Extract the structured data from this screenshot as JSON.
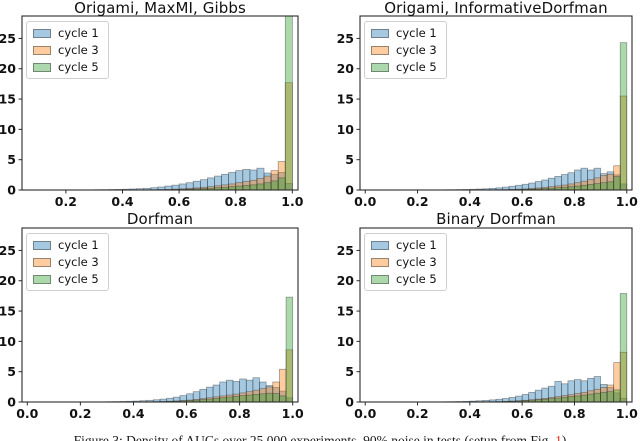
{
  "figure": {
    "caption": {
      "prefix": "Figure 3: Density of AUCs over 25,000 experiments, 90% noise in tests (setup from Fig. ",
      "link": "1",
      "suffix": ")",
      "link_color": "#e8291c"
    }
  },
  "legend": {
    "items": [
      "cycle 1",
      "cycle 3",
      "cycle 5"
    ]
  },
  "colors": {
    "cycle1": "#1f77b4",
    "cycle3": "#ff7f0e",
    "cycle5": "#2ca02c",
    "fill_alpha": 0.4,
    "edge": "#2d2d2d",
    "spine": "#2b2b2b"
  },
  "chart_data": [
    {
      "type": "bar",
      "subtype": "overlaid-histogram",
      "title": "Origami, MaxMI, Gibbs",
      "xlabel": "",
      "ylabel": "",
      "xlim": [
        0.045,
        1.02
      ],
      "ylim": [
        0,
        28.7
      ],
      "xticks": [
        0.2,
        0.4,
        0.6,
        0.8,
        1.0
      ],
      "yticks": [
        0,
        5,
        10,
        15,
        20,
        25
      ],
      "grid": false,
      "legend_position": "upper left",
      "bin_start": 0.3,
      "bin_width": 0.025,
      "series": [
        {
          "name": "cycle 1",
          "color": "#1f77b4",
          "values": [
            0.05,
            0.06,
            0.08,
            0.1,
            0.13,
            0.17,
            0.22,
            0.28,
            0.38,
            0.5,
            0.65,
            0.8,
            1.0,
            1.2,
            1.45,
            1.7,
            2.0,
            2.3,
            2.6,
            2.9,
            3.2,
            3.4,
            3.3,
            3.6,
            2.8,
            2.6,
            2.9,
            1.1
          ]
        },
        {
          "name": "cycle 3",
          "color": "#ff7f0e",
          "values": [
            0,
            0,
            0,
            0,
            0,
            0,
            0.02,
            0.03,
            0.05,
            0.08,
            0.1,
            0.15,
            0.2,
            0.28,
            0.35,
            0.45,
            0.55,
            0.7,
            0.85,
            1.0,
            1.2,
            1.4,
            1.6,
            1.9,
            2.3,
            3.2,
            4.7,
            17.7
          ]
        },
        {
          "name": "cycle 5",
          "color": "#2ca02c",
          "values": [
            0,
            0,
            0,
            0,
            0,
            0,
            0,
            0,
            0.02,
            0.03,
            0.05,
            0.08,
            0.1,
            0.15,
            0.2,
            0.25,
            0.3,
            0.4,
            0.45,
            0.55,
            0.65,
            0.75,
            0.85,
            1.0,
            1.2,
            1.5,
            2.0,
            28.7
          ]
        }
      ]
    },
    {
      "type": "bar",
      "subtype": "overlaid-histogram",
      "title": "Origami, InformativeDorfman",
      "xlabel": "",
      "ylabel": "",
      "xlim": [
        -0.02,
        1.02
      ],
      "ylim": [
        0,
        28.7
      ],
      "xticks": [
        0.0,
        0.2,
        0.4,
        0.6,
        0.8,
        1.0
      ],
      "yticks": [
        0,
        5,
        10,
        15,
        20,
        25
      ],
      "grid": false,
      "legend_position": "upper left",
      "bin_start": 0.3,
      "bin_width": 0.025,
      "series": [
        {
          "name": "cycle 1",
          "color": "#1f77b4",
          "values": [
            0.04,
            0.05,
            0.07,
            0.09,
            0.12,
            0.16,
            0.2,
            0.27,
            0.36,
            0.48,
            0.62,
            0.78,
            0.95,
            1.15,
            1.4,
            1.65,
            1.95,
            2.25,
            2.55,
            2.85,
            3.3,
            3.6,
            3.3,
            3.6,
            2.7,
            3.0,
            2.5,
            1.0
          ]
        },
        {
          "name": "cycle 3",
          "color": "#ff7f0e",
          "values": [
            0,
            0,
            0,
            0,
            0,
            0,
            0.02,
            0.03,
            0.05,
            0.07,
            0.1,
            0.14,
            0.19,
            0.26,
            0.34,
            0.44,
            0.55,
            0.68,
            0.82,
            1.0,
            1.2,
            1.45,
            1.7,
            2.0,
            2.4,
            2.6,
            4.0,
            15.5
          ]
        },
        {
          "name": "cycle 5",
          "color": "#2ca02c",
          "values": [
            0,
            0,
            0,
            0,
            0,
            0,
            0,
            0,
            0.02,
            0.03,
            0.05,
            0.07,
            0.1,
            0.14,
            0.18,
            0.24,
            0.3,
            0.38,
            0.46,
            0.55,
            0.65,
            0.78,
            0.92,
            1.05,
            1.2,
            1.35,
            2.2,
            24.3
          ]
        }
      ]
    },
    {
      "type": "bar",
      "subtype": "overlaid-histogram",
      "title": "Dorfman",
      "xlabel": "",
      "ylabel": "",
      "xlim": [
        -0.02,
        1.02
      ],
      "ylim": [
        0,
        28.7
      ],
      "xticks": [
        0.0,
        0.2,
        0.4,
        0.6,
        0.8,
        1.0
      ],
      "yticks": [
        0,
        5,
        10,
        15,
        20,
        25
      ],
      "grid": false,
      "legend_position": "upper left",
      "bin_start": 0.3,
      "bin_width": 0.025,
      "series": [
        {
          "name": "cycle 1",
          "color": "#1f77b4",
          "values": [
            0.05,
            0.07,
            0.09,
            0.12,
            0.16,
            0.21,
            0.28,
            0.37,
            0.48,
            0.62,
            0.8,
            1.05,
            1.35,
            1.7,
            2.1,
            2.45,
            2.8,
            3.3,
            3.6,
            3.4,
            3.8,
            3.6,
            4.0,
            3.3,
            2.7,
            2.4,
            1.8,
            0.7
          ]
        },
        {
          "name": "cycle 3",
          "color": "#ff7f0e",
          "values": [
            0,
            0,
            0,
            0,
            0,
            0.02,
            0.03,
            0.05,
            0.08,
            0.12,
            0.17,
            0.24,
            0.32,
            0.42,
            0.55,
            0.7,
            0.85,
            1.0,
            1.15,
            1.3,
            1.5,
            1.7,
            1.95,
            2.2,
            2.5,
            3.3,
            5.4,
            8.6
          ]
        },
        {
          "name": "cycle 5",
          "color": "#2ca02c",
          "values": [
            0,
            0,
            0,
            0,
            0,
            0,
            0.02,
            0.04,
            0.06,
            0.09,
            0.13,
            0.18,
            0.24,
            0.31,
            0.39,
            0.48,
            0.58,
            0.7,
            0.82,
            0.95,
            1.05,
            1.15,
            1.25,
            1.35,
            1.45,
            1.4,
            1.0,
            17.3
          ]
        }
      ]
    },
    {
      "type": "bar",
      "subtype": "overlaid-histogram",
      "title": "Binary Dorfman",
      "xlabel": "",
      "ylabel": "",
      "xlim": [
        -0.02,
        1.02
      ],
      "ylim": [
        0,
        28.7
      ],
      "xticks": [
        0.0,
        0.2,
        0.4,
        0.6,
        0.8,
        1.0
      ],
      "yticks": [
        0,
        5,
        10,
        15,
        20,
        25
      ],
      "grid": false,
      "legend_position": "upper left",
      "bin_start": 0.3,
      "bin_width": 0.025,
      "series": [
        {
          "name": "cycle 1",
          "color": "#1f77b4",
          "values": [
            0.04,
            0.06,
            0.08,
            0.11,
            0.15,
            0.2,
            0.26,
            0.35,
            0.45,
            0.58,
            0.75,
            0.98,
            1.25,
            1.6,
            1.95,
            2.3,
            2.6,
            3.4,
            3.0,
            3.5,
            3.7,
            3.5,
            3.9,
            4.2,
            2.9,
            2.4,
            1.5,
            0.6
          ]
        },
        {
          "name": "cycle 3",
          "color": "#ff7f0e",
          "values": [
            0,
            0,
            0,
            0,
            0,
            0.02,
            0.03,
            0.05,
            0.07,
            0.1,
            0.15,
            0.21,
            0.28,
            0.37,
            0.48,
            0.6,
            0.74,
            0.88,
            1.05,
            1.2,
            1.4,
            1.6,
            1.85,
            2.1,
            2.4,
            2.8,
            6.5,
            8.2
          ]
        },
        {
          "name": "cycle 5",
          "color": "#2ca02c",
          "values": [
            0,
            0,
            0,
            0,
            0,
            0,
            0.02,
            0.03,
            0.05,
            0.08,
            0.12,
            0.16,
            0.22,
            0.29,
            0.37,
            0.45,
            0.55,
            0.66,
            0.78,
            0.9,
            1.0,
            1.15,
            1.3,
            1.45,
            1.6,
            1.7,
            2.0,
            17.9
          ]
        }
      ]
    }
  ]
}
